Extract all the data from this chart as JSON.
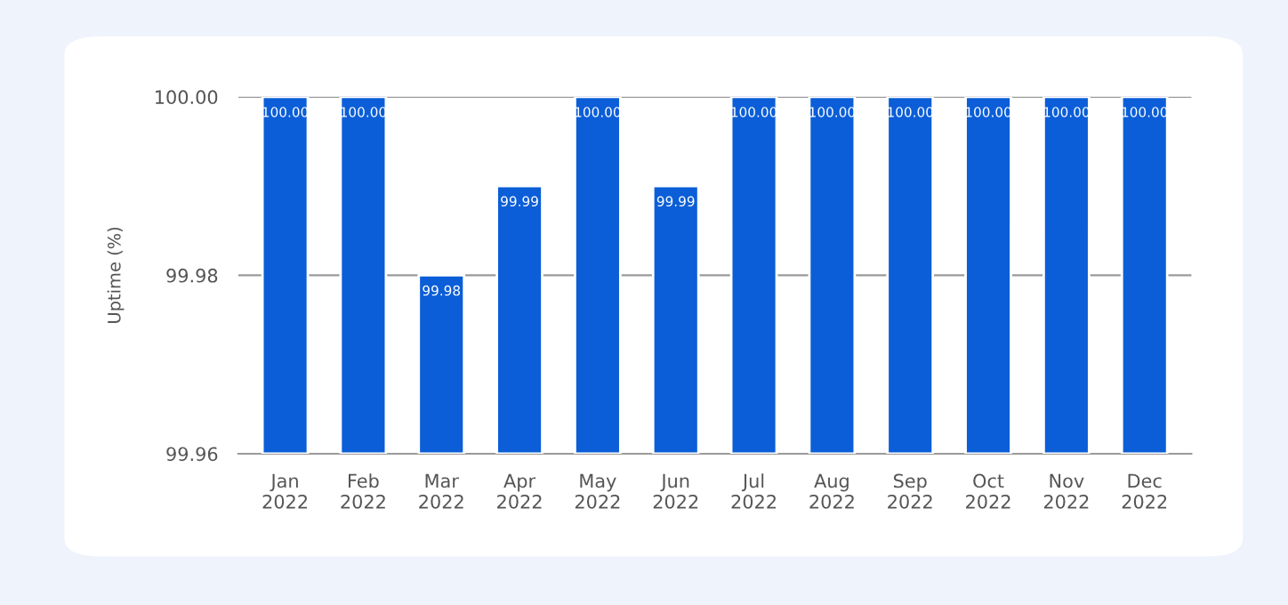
{
  "chart_data": {
    "type": "bar",
    "ylabel": "Uptime (%)",
    "categories": [
      "Jan\n2022",
      "Feb\n2022",
      "Mar\n2022",
      "Apr\n2022",
      "May\n2022",
      "Jun\n2022",
      "Jul\n2022",
      "Aug\n2022",
      "Sep\n2022",
      "Oct\n2022",
      "Nov\n2022",
      "Dec\n2022"
    ],
    "values": [
      100.0,
      100.0,
      99.98,
      99.99,
      100.0,
      99.99,
      100.0,
      100.0,
      100.0,
      100.0,
      100.0,
      100.0
    ],
    "value_labels": [
      "100.00",
      "100.00",
      "99.98",
      "99.99",
      "100.00",
      "99.99",
      "100.00",
      "100.00",
      "100.00",
      "100.00",
      "100.00",
      "100.00"
    ],
    "color": "#0b5ed7",
    "ylim": [
      99.96,
      100.0
    ],
    "yticks": [
      {
        "value": 99.96,
        "label": "99.96"
      },
      {
        "value": 99.98,
        "label": "99.98"
      },
      {
        "value": 100.0,
        "label": "100.00"
      }
    ],
    "grid": "y"
  }
}
